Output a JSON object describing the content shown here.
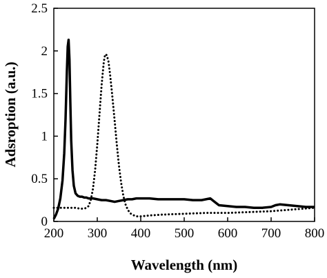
{
  "chart_data": {
    "type": "line",
    "title": "",
    "xlabel": "Wavelength (nm)",
    "ylabel": "Adsroption (a.u.)",
    "xlim": [
      200,
      800
    ],
    "ylim": [
      0,
      2.5
    ],
    "xticks": [
      200,
      300,
      400,
      500,
      600,
      700,
      800
    ],
    "yticks": [
      0,
      0.5,
      1,
      1.5,
      2,
      2.5
    ],
    "xtick_labels": [
      "200",
      "300",
      "400",
      "500",
      "600",
      "700",
      "800"
    ],
    "ytick_labels": [
      "0",
      "0.5",
      "1",
      "1.5",
      "2",
      "2.5"
    ],
    "grid": false,
    "legend": "none",
    "series": [
      {
        "style": "solid",
        "color": "#000000",
        "x": [
          200,
          205,
          210,
          215,
          220,
          224,
          227,
          230,
          232,
          234,
          236,
          238,
          240,
          243,
          246,
          250,
          255,
          260,
          265,
          270,
          275,
          280,
          290,
          300,
          310,
          320,
          330,
          340,
          350,
          360,
          370,
          380,
          390,
          400,
          420,
          440,
          460,
          480,
          500,
          520,
          540,
          550,
          560,
          570,
          580,
          600,
          620,
          640,
          660,
          680,
          700,
          710,
          720,
          740,
          760,
          780,
          800
        ],
        "y": [
          0.03,
          0.08,
          0.15,
          0.27,
          0.48,
          0.8,
          1.2,
          1.75,
          2.05,
          2.13,
          1.9,
          1.4,
          0.95,
          0.6,
          0.42,
          0.33,
          0.3,
          0.29,
          0.29,
          0.28,
          0.28,
          0.27,
          0.27,
          0.26,
          0.25,
          0.25,
          0.24,
          0.23,
          0.24,
          0.25,
          0.26,
          0.26,
          0.27,
          0.27,
          0.27,
          0.26,
          0.26,
          0.26,
          0.26,
          0.25,
          0.25,
          0.26,
          0.27,
          0.23,
          0.19,
          0.18,
          0.17,
          0.17,
          0.16,
          0.16,
          0.17,
          0.19,
          0.2,
          0.19,
          0.18,
          0.17,
          0.17
        ]
      },
      {
        "style": "dotted",
        "color": "#000000",
        "x": [
          200,
          220,
          240,
          250,
          260,
          270,
          275,
          280,
          285,
          290,
          295,
          300,
          305,
          310,
          315,
          318,
          322,
          326,
          330,
          335,
          340,
          345,
          350,
          355,
          360,
          365,
          370,
          375,
          380,
          390,
          400,
          420,
          450,
          500,
          550,
          600,
          650,
          700,
          750,
          800
        ],
        "y": [
          0.16,
          0.16,
          0.16,
          0.16,
          0.15,
          0.15,
          0.16,
          0.18,
          0.25,
          0.38,
          0.6,
          0.9,
          1.25,
          1.6,
          1.87,
          1.96,
          1.95,
          1.87,
          1.7,
          1.45,
          1.18,
          0.9,
          0.65,
          0.45,
          0.3,
          0.2,
          0.14,
          0.1,
          0.08,
          0.06,
          0.06,
          0.07,
          0.08,
          0.09,
          0.1,
          0.1,
          0.11,
          0.12,
          0.14,
          0.16
        ]
      }
    ]
  }
}
